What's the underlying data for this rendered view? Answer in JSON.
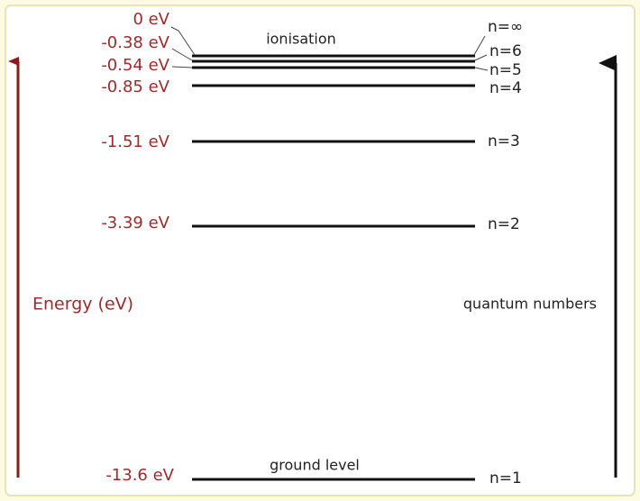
{
  "levels": [
    {
      "energy": "0 eV",
      "n": "n=∞"
    },
    {
      "energy": "-0.38 eV",
      "n": "n=6"
    },
    {
      "energy": "-0.54 eV",
      "n": "n=5"
    },
    {
      "energy": "-0.85 eV",
      "n": "n=4"
    },
    {
      "energy": "-1.51 eV",
      "n": "n=3"
    },
    {
      "energy": "-3.39 eV",
      "n": "n=2"
    },
    {
      "energy": "-13.6 eV",
      "n": "n=1"
    }
  ],
  "labels": {
    "ionisation": "ionisation",
    "ground": "ground level",
    "energy_axis": "Energy (eV)",
    "quantum_axis": "quantum numbers"
  }
}
